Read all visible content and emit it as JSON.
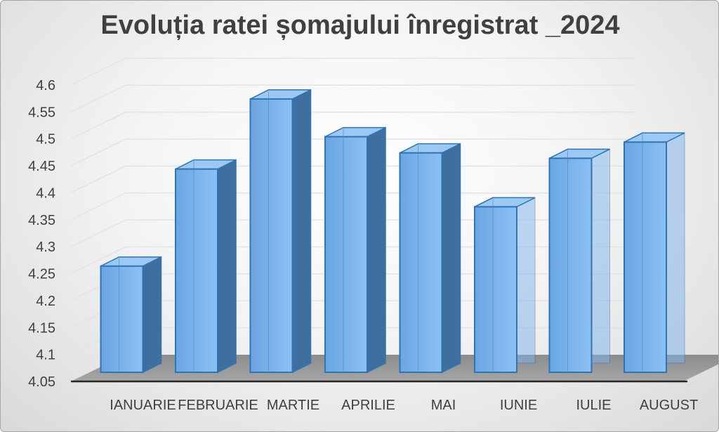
{
  "chart_data": {
    "type": "bar",
    "title": "Evoluția ratei șomajului înregistrat _2024",
    "categories": [
      "IANUARIE",
      "FEBRUARIE",
      "MARTIE",
      "APRILIE",
      "MAI",
      "IUNIE",
      "IULIE",
      "AUGUST"
    ],
    "values": [
      4.26,
      4.44,
      4.57,
      4.5,
      4.47,
      4.37,
      4.46,
      4.49
    ],
    "y_ticks": [
      "4.05",
      "4.1",
      "4.15",
      "4.2",
      "4.25",
      "4.3",
      "4.35",
      "4.4",
      "4.45",
      "4.5",
      "4.55",
      "4.6"
    ],
    "ylim": [
      4.05,
      4.6
    ],
    "grid": true,
    "style": "3d-column",
    "bar_color": "#5b9bd5"
  }
}
